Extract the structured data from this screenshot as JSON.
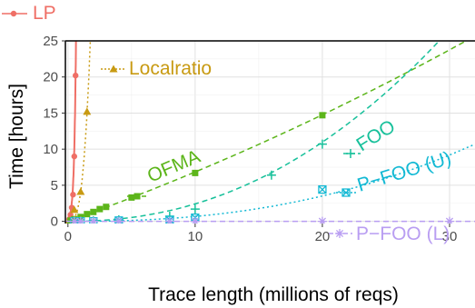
{
  "chart_data": {
    "type": "line",
    "xlabel": "Trace length (millions of reqs)",
    "ylabel": "Time [hours]",
    "xlim": [
      -0.2,
      32
    ],
    "ylim": [
      -0.3,
      25
    ],
    "x_ticks": [
      0,
      10,
      20,
      30
    ],
    "y_ticks": [
      0,
      5,
      10,
      15,
      20,
      25
    ],
    "grid": true,
    "series": [
      {
        "name": "LP",
        "color": "#ef6f66",
        "marker": "circle",
        "line_style": "solid",
        "x": [
          0.1,
          0.2,
          0.3,
          0.4,
          0.5,
          0.6
        ],
        "y": [
          0.3,
          0.9,
          1.9,
          3.7,
          9.0,
          20.2
        ]
      },
      {
        "name": "Localratio",
        "color": "#c89a12",
        "marker": "triangle",
        "line_style": "dotted",
        "x": [
          0.1,
          0.5,
          1.0,
          1.5
        ],
        "y": [
          0.1,
          1.6,
          4.1,
          15.2
        ]
      },
      {
        "name": "OFMA",
        "color": "#5cb51a",
        "marker": "square",
        "line_style": "dashed",
        "x": [
          0.2,
          0.5,
          1.0,
          1.5,
          2.0,
          2.5,
          3.0,
          5.0,
          10.0,
          20.0
        ],
        "y": [
          0.1,
          0.3,
          0.6,
          1.0,
          1.3,
          1.7,
          2.0,
          3.3,
          6.7,
          14.7
        ]
      },
      {
        "name": "FOO",
        "color": "#17c09a",
        "marker": "plus",
        "line_style": "dashed",
        "x": [
          0.5,
          1.0,
          2.0,
          4.0,
          8.0,
          10.0,
          16.0,
          20.0
        ],
        "y": [
          0.0,
          0.0,
          0.1,
          0.2,
          0.7,
          1.7,
          6.4,
          10.7
        ]
      },
      {
        "name": "P−FOO (U)",
        "color": "#13b9d4",
        "marker": "box-x",
        "line_style": "dotted",
        "x": [
          0.5,
          1.0,
          2.0,
          4.0,
          8.0,
          10.0,
          20.0
        ],
        "y": [
          0.0,
          0.0,
          0.0,
          0.1,
          0.2,
          0.5,
          4.4
        ]
      },
      {
        "name": "P−FOO (L)",
        "color": "#b99ef2",
        "marker": "asterisk",
        "line_style": "dashed",
        "x": [
          0.5,
          1.0,
          2.0,
          4.0,
          8.0,
          10.0,
          20.0,
          30.0
        ],
        "y": [
          0.0,
          0.0,
          0.0,
          0.0,
          0.0,
          0.0,
          0.0,
          0.0
        ]
      }
    ]
  }
}
